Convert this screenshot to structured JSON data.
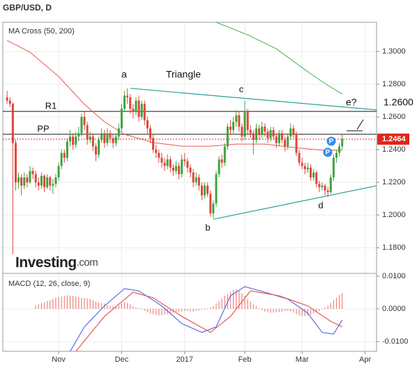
{
  "chart_data": [
    {
      "type": "candlestick",
      "title": "GBP/USD, D",
      "subtitle": "MA Cross (50, 200)",
      "xlim": [
        -1.5,
        129
      ],
      "xticks": [
        {
          "value": 18,
          "label": "Nov"
        },
        {
          "value": 40,
          "label": "Dec"
        },
        {
          "value": 62,
          "label": "2017"
        },
        {
          "value": 83,
          "label": "Feb"
        },
        {
          "value": 103,
          "label": "Mar"
        },
        {
          "value": 125,
          "label": "Apr"
        }
      ],
      "ylim": [
        1.1643,
        1.3179
      ],
      "yticks": [
        {
          "value": 1.18,
          "label": "1.1800"
        },
        {
          "value": 1.2,
          "label": "1.2000"
        },
        {
          "value": 1.22,
          "label": "1.2200"
        },
        {
          "value": 1.24,
          "label": "1.2400"
        },
        {
          "value": 1.26,
          "label": "1.2600"
        },
        {
          "value": 1.28,
          "label": "1.2800"
        },
        {
          "value": 1.3,
          "label": "1.3000"
        }
      ],
      "grid": true,
      "up_color": "#3fa33f",
      "down_color": "#e0463b",
      "ohlc": [
        [
          1.272,
          1.276,
          1.268,
          1.27
        ],
        [
          1.27,
          1.272,
          1.266,
          1.268
        ],
        [
          1.268,
          1.269,
          1.176,
          1.244
        ],
        [
          1.244,
          1.246,
          1.215,
          1.22
        ],
        [
          1.22,
          1.226,
          1.216,
          1.223
        ],
        [
          1.223,
          1.225,
          1.212,
          1.218
        ],
        [
          1.218,
          1.226,
          1.216,
          1.223
        ],
        [
          1.223,
          1.225,
          1.217,
          1.22
        ],
        [
          1.22,
          1.23,
          1.219,
          1.227
        ],
        [
          1.227,
          1.229,
          1.222,
          1.225
        ],
        [
          1.225,
          1.227,
          1.217,
          1.22
        ],
        [
          1.22,
          1.223,
          1.215,
          1.218
        ],
        [
          1.218,
          1.226,
          1.216,
          1.224
        ],
        [
          1.224,
          1.225,
          1.214,
          1.217
        ],
        [
          1.217,
          1.225,
          1.216,
          1.223
        ],
        [
          1.223,
          1.224,
          1.215,
          1.218
        ],
        [
          1.218,
          1.222,
          1.213,
          1.219
        ],
        [
          1.219,
          1.225,
          1.217,
          1.223
        ],
        [
          1.223,
          1.232,
          1.221,
          1.23
        ],
        [
          1.23,
          1.24,
          1.228,
          1.238
        ],
        [
          1.238,
          1.24,
          1.232,
          1.235
        ],
        [
          1.235,
          1.247,
          1.233,
          1.245
        ],
        [
          1.245,
          1.252,
          1.242,
          1.248
        ],
        [
          1.248,
          1.25,
          1.24,
          1.243
        ],
        [
          1.243,
          1.251,
          1.241,
          1.248
        ],
        [
          1.248,
          1.254,
          1.245,
          1.25
        ],
        [
          1.25,
          1.262,
          1.248,
          1.26
        ],
        [
          1.26,
          1.263,
          1.252,
          1.255
        ],
        [
          1.255,
          1.257,
          1.243,
          1.246
        ],
        [
          1.246,
          1.251,
          1.244,
          1.248
        ],
        [
          1.248,
          1.25,
          1.239,
          1.242
        ],
        [
          1.242,
          1.244,
          1.233,
          1.237
        ],
        [
          1.237,
          1.248,
          1.235,
          1.246
        ],
        [
          1.246,
          1.253,
          1.244,
          1.25
        ],
        [
          1.25,
          1.252,
          1.241,
          1.244
        ],
        [
          1.244,
          1.253,
          1.242,
          1.25
        ],
        [
          1.25,
          1.252,
          1.244,
          1.247
        ],
        [
          1.247,
          1.249,
          1.241,
          1.244
        ],
        [
          1.244,
          1.25,
          1.242,
          1.248
        ],
        [
          1.248,
          1.256,
          1.246,
          1.253
        ],
        [
          1.253,
          1.268,
          1.251,
          1.265
        ],
        [
          1.265,
          1.276,
          1.263,
          1.273
        ],
        [
          1.273,
          1.2775,
          1.268,
          1.272
        ],
        [
          1.272,
          1.274,
          1.262,
          1.265
        ],
        [
          1.265,
          1.268,
          1.259,
          1.263
        ],
        [
          1.263,
          1.272,
          1.261,
          1.27
        ],
        [
          1.27,
          1.273,
          1.257,
          1.26
        ],
        [
          1.26,
          1.27,
          1.258,
          1.268
        ],
        [
          1.268,
          1.27,
          1.255,
          1.258
        ],
        [
          1.258,
          1.26,
          1.25,
          1.253
        ],
        [
          1.253,
          1.255,
          1.244,
          1.247
        ],
        [
          1.247,
          1.249,
          1.238,
          1.24
        ],
        [
          1.24,
          1.243,
          1.235,
          1.238
        ],
        [
          1.238,
          1.24,
          1.232,
          1.235
        ],
        [
          1.235,
          1.238,
          1.229,
          1.232
        ],
        [
          1.232,
          1.235,
          1.227,
          1.23
        ],
        [
          1.23,
          1.237,
          1.228,
          1.234
        ],
        [
          1.234,
          1.236,
          1.226,
          1.229
        ],
        [
          1.229,
          1.231,
          1.224,
          1.227
        ],
        [
          1.227,
          1.233,
          1.225,
          1.23
        ],
        [
          1.23,
          1.232,
          1.222,
          1.225
        ],
        [
          1.225,
          1.237,
          1.223,
          1.234
        ],
        [
          1.234,
          1.238,
          1.23,
          1.233
        ],
        [
          1.233,
          1.235,
          1.226,
          1.229
        ],
        [
          1.229,
          1.231,
          1.223,
          1.226
        ],
        [
          1.226,
          1.228,
          1.217,
          1.22
        ],
        [
          1.22,
          1.226,
          1.218,
          1.223
        ],
        [
          1.223,
          1.225,
          1.215,
          1.218
        ],
        [
          1.218,
          1.22,
          1.209,
          1.212
        ],
        [
          1.212,
          1.22,
          1.21,
          1.218
        ],
        [
          1.218,
          1.22,
          1.211,
          1.213
        ],
        [
          1.213,
          1.215,
          1.199,
          1.201
        ],
        [
          1.201,
          1.209,
          1.198,
          1.207
        ],
        [
          1.207,
          1.227,
          1.205,
          1.225
        ],
        [
          1.225,
          1.236,
          1.223,
          1.234
        ],
        [
          1.234,
          1.237,
          1.229,
          1.232
        ],
        [
          1.232,
          1.244,
          1.23,
          1.242
        ],
        [
          1.242,
          1.256,
          1.24,
          1.254
        ],
        [
          1.254,
          1.258,
          1.249,
          1.252
        ],
        [
          1.252,
          1.26,
          1.25,
          1.257
        ],
        [
          1.257,
          1.264,
          1.254,
          1.261
        ],
        [
          1.261,
          1.263,
          1.251,
          1.254
        ],
        [
          1.254,
          1.256,
          1.245,
          1.248
        ],
        [
          1.248,
          1.27,
          1.246,
          1.263
        ],
        [
          1.263,
          1.265,
          1.249,
          1.252
        ],
        [
          1.252,
          1.255,
          1.247,
          1.25
        ],
        [
          1.25,
          1.252,
          1.237,
          1.246
        ],
        [
          1.246,
          1.256,
          1.244,
          1.253
        ],
        [
          1.253,
          1.255,
          1.246,
          1.249
        ],
        [
          1.249,
          1.257,
          1.247,
          1.254
        ],
        [
          1.254,
          1.256,
          1.248,
          1.251
        ],
        [
          1.251,
          1.253,
          1.244,
          1.247
        ],
        [
          1.247,
          1.254,
          1.245,
          1.252
        ],
        [
          1.252,
          1.254,
          1.246,
          1.248
        ],
        [
          1.248,
          1.25,
          1.241,
          1.244
        ],
        [
          1.244,
          1.252,
          1.242,
          1.25
        ],
        [
          1.25,
          1.252,
          1.244,
          1.246
        ],
        [
          1.246,
          1.248,
          1.239,
          1.242
        ],
        [
          1.242,
          1.25,
          1.24,
          1.248
        ],
        [
          1.248,
          1.256,
          1.246,
          1.253
        ],
        [
          1.253,
          1.255,
          1.247,
          1.249
        ],
        [
          1.249,
          1.251,
          1.236,
          1.238
        ],
        [
          1.238,
          1.24,
          1.23,
          1.232
        ],
        [
          1.232,
          1.235,
          1.228,
          1.23
        ],
        [
          1.23,
          1.232,
          1.225,
          1.228
        ],
        [
          1.228,
          1.232,
          1.226,
          1.229
        ],
        [
          1.229,
          1.231,
          1.221,
          1.223
        ],
        [
          1.223,
          1.228,
          1.221,
          1.226
        ],
        [
          1.226,
          1.227,
          1.217,
          1.219
        ],
        [
          1.219,
          1.221,
          1.214,
          1.217
        ],
        [
          1.217,
          1.22,
          1.215,
          1.218
        ],
        [
          1.218,
          1.219,
          1.212,
          1.215
        ],
        [
          1.215,
          1.217,
          1.211,
          1.214
        ],
        [
          1.214,
          1.225,
          1.213,
          1.223
        ],
        [
          1.223,
          1.237,
          1.221,
          1.235
        ],
        [
          1.235,
          1.24,
          1.232,
          1.238
        ],
        [
          1.238,
          1.244,
          1.236,
          1.242
        ],
        [
          1.242,
          1.249,
          1.24,
          1.2464
        ]
      ],
      "series": [
        {
          "color": "#e8574f",
          "x": [
            0,
            8,
            18,
            27,
            34,
            41,
            51,
            61,
            71,
            80,
            90,
            100,
            110,
            117
          ],
          "values": [
            1.3068,
            1.2996,
            1.2847,
            1.2677,
            1.257,
            1.2494,
            1.2443,
            1.2421,
            1.2421,
            1.2434,
            1.2434,
            1.2413,
            1.2396,
            1.2396
          ]
        },
        {
          "color": "#4caf50",
          "x": [
            73,
            84,
            94,
            104,
            111,
            117
          ],
          "values": [
            1.3179,
            1.3102,
            1.3017,
            1.2889,
            1.2804,
            1.274
          ]
        }
      ],
      "trendline_color": "#2aa198",
      "trendlines": [
        {
          "x": [
            43,
            129
          ],
          "values": [
            1.2775,
            1.2643
          ]
        },
        {
          "x": [
            72,
            129
          ],
          "values": [
            1.1974,
            1.2179
          ]
        }
      ],
      "hlines": [
        {
          "label": "R1",
          "value": 1.2634
        },
        {
          "label": "PP",
          "value": 1.2494
        }
      ],
      "last_price": 1.2464,
      "last_price_color": "#e0261b",
      "annotations": [
        "a",
        "Triangle",
        "c",
        "b",
        "d",
        "e?",
        "1.2600"
      ],
      "markers": [
        "P",
        "P"
      ],
      "watermark": [
        "Investing",
        ".com"
      ]
    },
    {
      "type": "macd",
      "title": "MACD (12, 26, close, 9)",
      "xlim": [
        -1.5,
        129
      ],
      "ylim": [
        -0.01298,
        0.01085
      ],
      "yticks": [
        {
          "value": -0.01,
          "label": "-0.0100"
        },
        {
          "value": 0,
          "label": "0.0000"
        },
        {
          "value": 0.01,
          "label": "0.0100"
        }
      ],
      "histogram_color": "#e8574f",
      "histogram": [
        null,
        null,
        null,
        null,
        null,
        null,
        null,
        null,
        null,
        null,
        0.001,
        0.0014,
        0.0018,
        0.002,
        0.0024,
        0.0026,
        0.003,
        0.0034,
        0.0036,
        0.0038,
        0.004,
        0.0042,
        0.004,
        0.004,
        0.0038,
        0.0036,
        0.0034,
        0.0034,
        0.0032,
        0.003,
        0.0026,
        0.0022,
        0.002,
        0.0018,
        0.0016,
        0.0012,
        0.001,
        0.0008,
        0.0006,
        0.001,
        0.0016,
        0.002,
        0.0018,
        0.0014,
        0.0008,
        0.0004,
        0.0002,
        -0.0002,
        -0.0006,
        -0.001,
        -0.0014,
        -0.0016,
        -0.0018,
        -0.002,
        -0.002,
        -0.0018,
        -0.0016,
        -0.0014,
        -0.0012,
        -0.001,
        -0.0008,
        -0.0008,
        -0.0006,
        -0.0006,
        -0.0008,
        -0.0008,
        -0.0006,
        -0.0004,
        -0.0002,
        -0.0002,
        0.0002,
        0.0004,
        0.0008,
        0.0016,
        0.0024,
        0.0032,
        0.004,
        0.0046,
        0.0052,
        0.0058,
        0.006,
        0.0056,
        0.0048,
        0.004,
        0.003,
        0.0022,
        0.0014,
        0.0008,
        0.0002,
        -0.0004,
        -0.0008,
        -0.001,
        -0.0012,
        -0.0012,
        -0.001,
        -0.001,
        -0.0008,
        -0.0006,
        -0.0006,
        -0.0008,
        -0.0012,
        -0.0016,
        -0.002,
        -0.0022,
        -0.0022,
        -0.002,
        -0.0018,
        -0.0014,
        -0.001,
        -0.0006,
        -0.0002,
        0.0004,
        0.001,
        0.0018,
        0.0026,
        0.0034,
        0.0042,
        0.0048
      ],
      "series": [
        {
          "color": "#5b6ee1",
          "x": [
            22,
            27,
            34,
            41,
            46,
            54,
            61,
            68,
            73,
            78,
            83,
            90,
            98,
            105,
            110,
            114,
            117
          ],
          "values": [
            -0.013,
            -0.0055,
            0.0009,
            0.0062,
            0.0055,
            0.0009,
            -0.0045,
            -0.0072,
            -0.0055,
            0.004,
            0.0068,
            0.0051,
            0.003,
            -0.0013,
            -0.0072,
            -0.0077,
            -0.0034
          ]
        },
        {
          "color": "#e8574f",
          "x": [
            24,
            34,
            44,
            51,
            61,
            71,
            78,
            85,
            95,
            105,
            113,
            117
          ],
          "values": [
            -0.013,
            -0.0023,
            0.0051,
            0.0034,
            -0.0023,
            -0.0072,
            -0.0023,
            0.0055,
            0.004,
            0.0009,
            -0.0038,
            -0.0055
          ]
        }
      ]
    }
  ]
}
